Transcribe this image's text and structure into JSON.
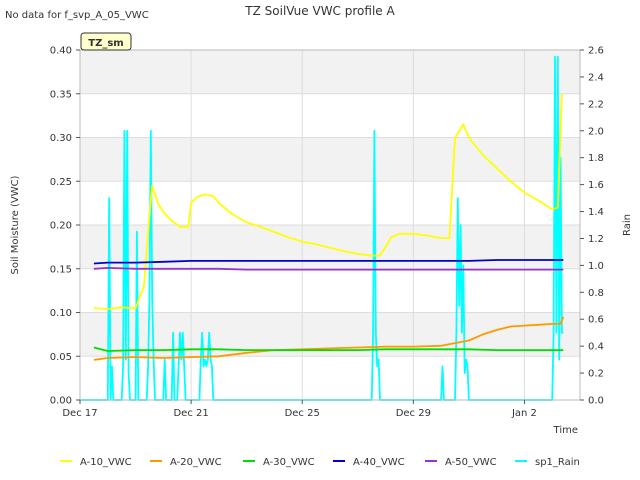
{
  "top_note": "No data for f_svp_A_05_VWC",
  "station_badge": "TZ_sm",
  "chart_data": {
    "type": "line",
    "title": "TZ SoilVue VWC profile A",
    "xlabel": "Time",
    "ylabel": "Soil Moisture (VWC)",
    "y2label": "Rain",
    "x_ticks": [
      "Dec 17",
      "Dec 21",
      "Dec 25",
      "Dec 29",
      "Jan 2"
    ],
    "x_tick_days": [
      0,
      4,
      8,
      12,
      16
    ],
    "xlim": [
      0,
      18
    ],
    "ylim": [
      0,
      0.4
    ],
    "y_ticks": [
      0.0,
      0.05,
      0.1,
      0.15,
      0.2,
      0.25,
      0.3,
      0.35,
      0.4
    ],
    "y_tick_labels": [
      "0.00",
      "0.05",
      "0.10",
      "0.15",
      "0.20",
      "0.25",
      "0.30",
      "0.35",
      "0.40"
    ],
    "y2lim": [
      0,
      2.6
    ],
    "y2_ticks": [
      0.0,
      0.2,
      0.4,
      0.6,
      0.8,
      1.0,
      1.2,
      1.4,
      1.6,
      1.8,
      2.0,
      2.2,
      2.4,
      2.6
    ],
    "y2_tick_labels": [
      "0.0",
      "0.2",
      "0.4",
      "0.6",
      "0.8",
      "1.0",
      "1.2",
      "1.4",
      "1.6",
      "1.8",
      "2.0",
      "2.2",
      "2.4",
      "2.6"
    ],
    "grid": true,
    "legend": "bottom",
    "series": [
      {
        "name": "A-10_VWC",
        "color": "#ffff00",
        "axis": "left",
        "x": [
          0.5,
          1.0,
          1.5,
          1.8,
          2.0,
          2.3,
          2.5,
          2.6,
          2.8,
          3.0,
          3.3,
          3.6,
          3.9,
          4.0,
          4.2,
          4.5,
          4.8,
          5.0,
          5.5,
          6.0,
          6.5,
          7.0,
          7.5,
          8.0,
          8.5,
          9.0,
          9.5,
          10.0,
          10.5,
          10.8,
          11.0,
          11.2,
          11.5,
          12.0,
          12.5,
          13.0,
          13.3,
          13.5,
          13.8,
          14.0,
          14.5,
          15.0,
          15.5,
          16.0,
          16.5,
          17.0,
          17.2,
          17.35
        ],
        "y": [
          0.105,
          0.104,
          0.106,
          0.105,
          0.105,
          0.13,
          0.21,
          0.245,
          0.225,
          0.215,
          0.205,
          0.198,
          0.198,
          0.225,
          0.232,
          0.235,
          0.233,
          0.225,
          0.212,
          0.203,
          0.198,
          0.192,
          0.186,
          0.181,
          0.178,
          0.174,
          0.17,
          0.167,
          0.165,
          0.165,
          0.175,
          0.186,
          0.19,
          0.19,
          0.188,
          0.185,
          0.185,
          0.3,
          0.315,
          0.3,
          0.28,
          0.265,
          0.25,
          0.237,
          0.228,
          0.218,
          0.22,
          0.35
        ]
      },
      {
        "name": "A-20_VWC",
        "color": "#ff9900",
        "axis": "left",
        "x": [
          0.5,
          1.0,
          2.0,
          3.0,
          4.0,
          5.0,
          6.0,
          7.0,
          8.0,
          9.0,
          10.0,
          11.0,
          12.0,
          13.0,
          13.5,
          14.0,
          14.5,
          15.0,
          15.5,
          16.0,
          16.5,
          17.0,
          17.3,
          17.4
        ],
        "y": [
          0.046,
          0.048,
          0.049,
          0.048,
          0.049,
          0.05,
          0.054,
          0.057,
          0.058,
          0.059,
          0.06,
          0.061,
          0.061,
          0.062,
          0.065,
          0.068,
          0.075,
          0.08,
          0.084,
          0.085,
          0.086,
          0.087,
          0.087,
          0.095
        ]
      },
      {
        "name": "A-30_VWC",
        "color": "#00dd00",
        "axis": "left",
        "x": [
          0.5,
          1.0,
          2.0,
          3.0,
          4.0,
          5.0,
          6.0,
          7.0,
          8.0,
          9.0,
          10.0,
          11.0,
          12.0,
          13.0,
          14.0,
          15.0,
          16.0,
          17.0,
          17.4
        ],
        "y": [
          0.06,
          0.056,
          0.057,
          0.057,
          0.058,
          0.058,
          0.057,
          0.057,
          0.057,
          0.057,
          0.057,
          0.058,
          0.058,
          0.058,
          0.058,
          0.057,
          0.057,
          0.057,
          0.057
        ]
      },
      {
        "name": "A-40_VWC",
        "color": "#0000cc",
        "axis": "left",
        "x": [
          0.5,
          1.0,
          2.0,
          3.0,
          4.0,
          5.0,
          6.0,
          7.0,
          8.0,
          9.0,
          10.0,
          11.0,
          12.0,
          13.0,
          14.0,
          15.0,
          16.0,
          17.0,
          17.4
        ],
        "y": [
          0.156,
          0.157,
          0.157,
          0.158,
          0.159,
          0.159,
          0.159,
          0.159,
          0.159,
          0.159,
          0.159,
          0.159,
          0.159,
          0.159,
          0.159,
          0.16,
          0.16,
          0.16,
          0.16
        ]
      },
      {
        "name": "A-50_VWC",
        "color": "#9933cc",
        "axis": "left",
        "x": [
          0.5,
          1.0,
          2.0,
          3.0,
          4.0,
          5.0,
          6.0,
          7.0,
          8.0,
          9.0,
          10.0,
          11.0,
          12.0,
          13.0,
          14.0,
          15.0,
          16.0,
          17.0,
          17.4
        ],
        "y": [
          0.15,
          0.151,
          0.15,
          0.15,
          0.15,
          0.15,
          0.149,
          0.149,
          0.149,
          0.149,
          0.149,
          0.149,
          0.149,
          0.149,
          0.149,
          0.149,
          0.149,
          0.149,
          0.149
        ]
      },
      {
        "name": "sp1_Rain",
        "color": "#00ffff",
        "axis": "right",
        "x": [
          0,
          1.0,
          1.05,
          1.1,
          1.15,
          1.2,
          1.5,
          1.55,
          1.6,
          1.65,
          1.7,
          1.75,
          1.8,
          1.85,
          1.9,
          2.0,
          2.05,
          2.1,
          2.15,
          2.2,
          2.4,
          2.45,
          2.5,
          2.55,
          2.6,
          2.65,
          2.7,
          3.0,
          3.05,
          3.1,
          3.3,
          3.35,
          3.4,
          3.5,
          3.55,
          3.6,
          3.65,
          3.7,
          3.75,
          3.8,
          4.3,
          4.35,
          4.4,
          4.45,
          4.5,
          4.55,
          4.6,
          4.65,
          4.7,
          4.75,
          4.8,
          5.0,
          10.5,
          10.55,
          10.6,
          10.65,
          10.7,
          10.75,
          10.8,
          13.0,
          13.05,
          13.1,
          13.5,
          13.55,
          13.6,
          13.65,
          13.7,
          13.75,
          13.8,
          13.85,
          13.9,
          13.95,
          14.0,
          17.0,
          17.05,
          17.1,
          17.15,
          17.2,
          17.25,
          17.3,
          17.35,
          17.4
        ],
        "y": [
          0,
          0,
          1.5,
          0,
          0.25,
          0,
          0,
          0.25,
          2.0,
          0.3,
          2.0,
          0.2,
          0,
          0,
          0,
          0,
          1.25,
          0,
          0,
          0,
          0,
          0.25,
          0.75,
          2.0,
          0.75,
          0.3,
          0,
          0,
          0.3,
          0,
          0,
          0.5,
          0,
          0,
          0.25,
          0.5,
          0.3,
          0.5,
          0.25,
          0,
          0,
          0.3,
          0.5,
          0.25,
          0.3,
          0.25,
          0.3,
          0.5,
          0.3,
          0.25,
          0,
          0,
          0,
          0.5,
          2.0,
          0.5,
          0.25,
          0.3,
          0,
          0,
          0.25,
          0,
          0,
          0.5,
          1.5,
          0.7,
          1.3,
          0.5,
          1.0,
          0.2,
          0.3,
          0.25,
          0,
          0,
          0.5,
          2.55,
          0.5,
          2.55,
          0.3,
          1.8,
          0.5,
          0.5
        ]
      }
    ]
  }
}
